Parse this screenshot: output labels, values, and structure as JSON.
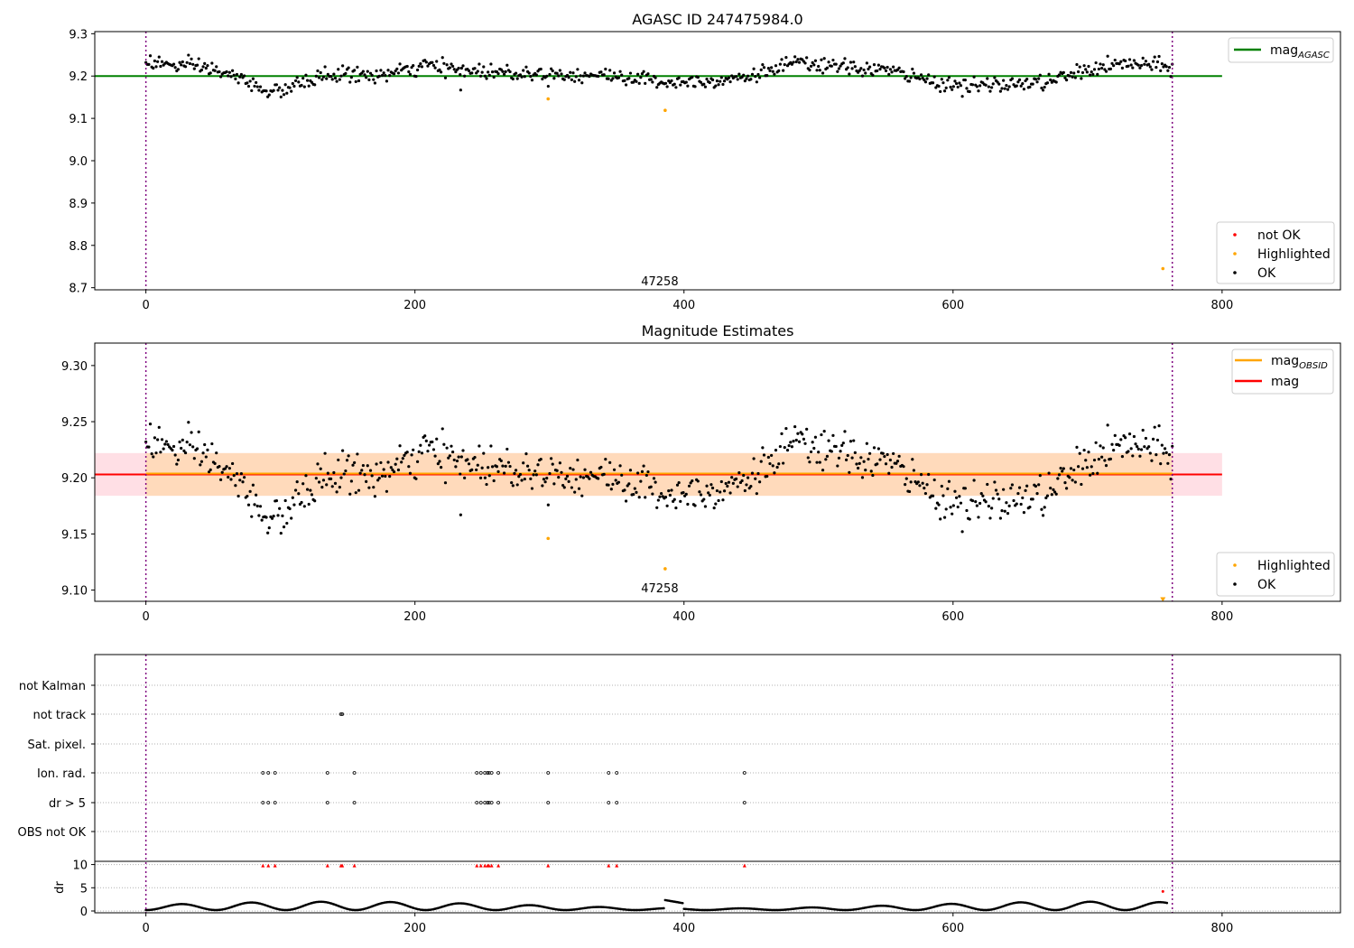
{
  "figure": {
    "panel1": {
      "title": "AGASC ID 247475984.0",
      "ylim": [
        8.695,
        9.305
      ],
      "yticks": [
        "9.3",
        "9.2",
        "9.1",
        "9.0",
        "8.9",
        "8.8",
        "8.7"
      ],
      "ytick_values": [
        9.3,
        9.2,
        9.1,
        9.0,
        8.9,
        8.8,
        8.7
      ],
      "annotation": "47258",
      "legend_top": [
        {
          "label": "mag",
          "sub": "AGASC",
          "color": "#008000",
          "kind": "line"
        }
      ],
      "legend_bottom": [
        {
          "label": "not OK",
          "color": "#ff0000",
          "kind": "dot"
        },
        {
          "label": "Highlighted",
          "color": "#ffa500",
          "kind": "dot"
        },
        {
          "label": "OK",
          "color": "#000000",
          "kind": "dot"
        }
      ]
    },
    "panel2": {
      "title": "Magnitude Estimates",
      "ylim": [
        9.09,
        9.32
      ],
      "yticks": [
        "9.30",
        "9.25",
        "9.20",
        "9.15",
        "9.10"
      ],
      "ytick_values": [
        9.3,
        9.25,
        9.2,
        9.15,
        9.1
      ],
      "annotation": "47258",
      "legend_top": [
        {
          "label": "mag",
          "sub": "OBSID",
          "color": "#ffa500",
          "kind": "line"
        },
        {
          "label": "mag",
          "sub": "",
          "color": "#ff0000",
          "kind": "line"
        }
      ],
      "legend_bottom": [
        {
          "label": "Highlighted",
          "color": "#ffa500",
          "kind": "dot"
        },
        {
          "label": "OK",
          "color": "#000000",
          "kind": "dot"
        }
      ]
    },
    "panel3": {
      "flag_labels": [
        "not Kalman",
        "not track",
        "Sat. pixel.",
        "Ion. rad.",
        "dr > 5",
        "OBS not OK"
      ],
      "dr_ylabel": "dr",
      "dr_yticks": [
        "10",
        "5",
        "0"
      ],
      "dr_ytick_values": [
        10,
        5,
        0
      ]
    },
    "xticks": [
      "0",
      "200",
      "400",
      "600",
      "800"
    ],
    "xtick_values": [
      0,
      200,
      400,
      600,
      800
    ]
  },
  "chart_data": [
    {
      "type": "scatter",
      "title": "AGASC ID 247475984.0",
      "xlabel": "",
      "ylabel": "",
      "xlim": [
        -38,
        888
      ],
      "ylim": [
        8.695,
        9.305
      ],
      "grid": false,
      "legend": [
        "top-right",
        "bottom-right"
      ],
      "reference_lines": [
        {
          "name": "mag_AGASC",
          "y": 9.2,
          "x_range": [
            -38,
            800
          ],
          "color": "#008000"
        }
      ],
      "vertical_lines": [
        {
          "x": 0,
          "style": "dotted",
          "color": "#800080"
        },
        {
          "x": 763,
          "style": "dotted",
          "color": "#800080"
        }
      ],
      "ok_profile_x": [
        0,
        20,
        45,
        60,
        80,
        95,
        110,
        130,
        150,
        170,
        190,
        210,
        230,
        260,
        300,
        350,
        390,
        420,
        450,
        480,
        520,
        550,
        580,
        610,
        640,
        670,
        700,
        730,
        763
      ],
      "ok_profile_y": [
        9.235,
        9.225,
        9.22,
        9.205,
        9.18,
        9.16,
        9.175,
        9.2,
        9.205,
        9.2,
        9.21,
        9.225,
        9.215,
        9.21,
        9.205,
        9.2,
        9.185,
        9.19,
        9.2,
        9.23,
        9.22,
        9.215,
        9.19,
        9.175,
        9.18,
        9.185,
        9.215,
        9.23,
        9.22
      ],
      "ok_scatter": 0.012,
      "ok_count": 700,
      "ok_outliers": [
        {
          "x": 234,
          "y": 9.167
        }
      ],
      "highlighted": [
        {
          "x": 299,
          "y": 9.146
        },
        {
          "x": 386,
          "y": 9.119
        },
        {
          "x": 756,
          "y": 8.745
        }
      ],
      "not_ok": [],
      "annotation": {
        "text": "47258",
        "x": 382,
        "y": 8.71
      }
    },
    {
      "type": "scatter",
      "title": "Magnitude Estimates",
      "xlabel": "",
      "ylabel": "",
      "xlim": [
        -38,
        888
      ],
      "ylim": [
        9.09,
        9.32
      ],
      "grid": false,
      "legend": [
        "top-right",
        "bottom-right"
      ],
      "reference_lines": [
        {
          "name": "mag_OBSID",
          "y": 9.203,
          "x_range": [
            0,
            763
          ],
          "color": "#ffa500"
        },
        {
          "name": "mag",
          "y": 9.203,
          "x_range": [
            -38,
            800
          ],
          "color": "#ff0000"
        }
      ],
      "bands": [
        {
          "y_range": [
            9.184,
            9.222
          ],
          "x_range": [
            -38,
            800
          ],
          "color": "#ff000022"
        },
        {
          "y_range": [
            9.184,
            9.222
          ],
          "x_range": [
            0,
            763
          ],
          "color": "#ffa50044"
        }
      ],
      "vertical_lines": [
        {
          "x": 0,
          "style": "dotted",
          "color": "#800080"
        },
        {
          "x": 763,
          "style": "dotted",
          "color": "#800080"
        }
      ],
      "ok_scatter": 0.012,
      "ok_count": 700,
      "ok_outliers": [
        {
          "x": 234,
          "y": 9.167
        }
      ],
      "highlighted": [
        {
          "x": 299,
          "y": 9.146
        },
        {
          "x": 386,
          "y": 9.119
        }
      ],
      "highlighted_below_axis": [
        {
          "x": 756,
          "y": 9.092
        }
      ],
      "annotation": {
        "text": "47258",
        "x": 382,
        "y": 9.102
      }
    },
    {
      "type": "scatter",
      "title": "",
      "xlabel": "",
      "ylabel": "",
      "xlim": [
        -38,
        888
      ],
      "categories": [
        "not Kalman",
        "not track",
        "Sat. pixel.",
        "Ion. rad.",
        "dr > 5",
        "OBS not OK"
      ],
      "flags": {
        "not track": [
          145,
          146
        ],
        "Ion. rad.": [
          87,
          91,
          96,
          135,
          155,
          246,
          249,
          252,
          254,
          255,
          257,
          262,
          299,
          344,
          350,
          445
        ],
        "dr > 5": [
          87,
          91,
          96,
          135,
          155,
          246,
          249,
          252,
          254,
          255,
          257,
          262,
          299,
          344,
          350,
          445
        ]
      },
      "grid": true
    },
    {
      "type": "line",
      "title": "",
      "xlabel": "",
      "ylabel": "dr",
      "xlim": [
        -38,
        888
      ],
      "ylim": [
        -0.5,
        10.5
      ],
      "dr_profile": "oscillating values between 0 and 2.5",
      "dr_gt5_x": [
        87,
        91,
        96,
        135,
        145,
        146,
        155,
        246,
        249,
        252,
        254,
        255,
        257,
        262,
        299,
        344,
        350,
        445
      ],
      "dr_gt5_y": 9.8,
      "highlighted": [
        {
          "x": 756,
          "y": 4.2
        }
      ]
    }
  ]
}
